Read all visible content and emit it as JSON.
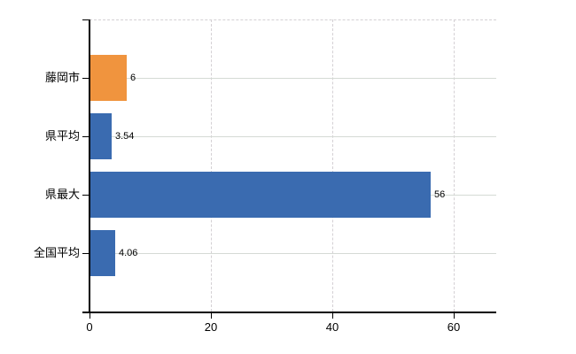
{
  "chart_data": {
    "type": "bar",
    "orientation": "horizontal",
    "title": "",
    "xlabel": "",
    "ylabel": "",
    "categories": [
      "藤岡市",
      "県平均",
      "県最大",
      "全国平均"
    ],
    "values": [
      6,
      3.54,
      56,
      4.06
    ],
    "value_labels": [
      "6",
      "3.54",
      "56",
      "4.06"
    ],
    "bar_colors": [
      "#F0943E",
      "#3A6BB0",
      "#3A6BB0",
      "#3A6BB0"
    ],
    "xticks": [
      0,
      20,
      40,
      60
    ],
    "xtick_labels": [
      "0",
      "20",
      "40",
      "60"
    ],
    "xlim": [
      0,
      67
    ],
    "legend": "none",
    "grid": {
      "vertical": "dashed at each x tick",
      "horizontal": "solid at each category center",
      "plot_top_border": "dashed"
    },
    "colors": {
      "background": "#ffffff",
      "axis": "#000000",
      "text": "#000000",
      "grid_dashed": "#d4d0d4",
      "grid_solid": "#d5dad5",
      "highlight_bar": "#F0943E",
      "default_bar": "#3A6BB0"
    }
  }
}
